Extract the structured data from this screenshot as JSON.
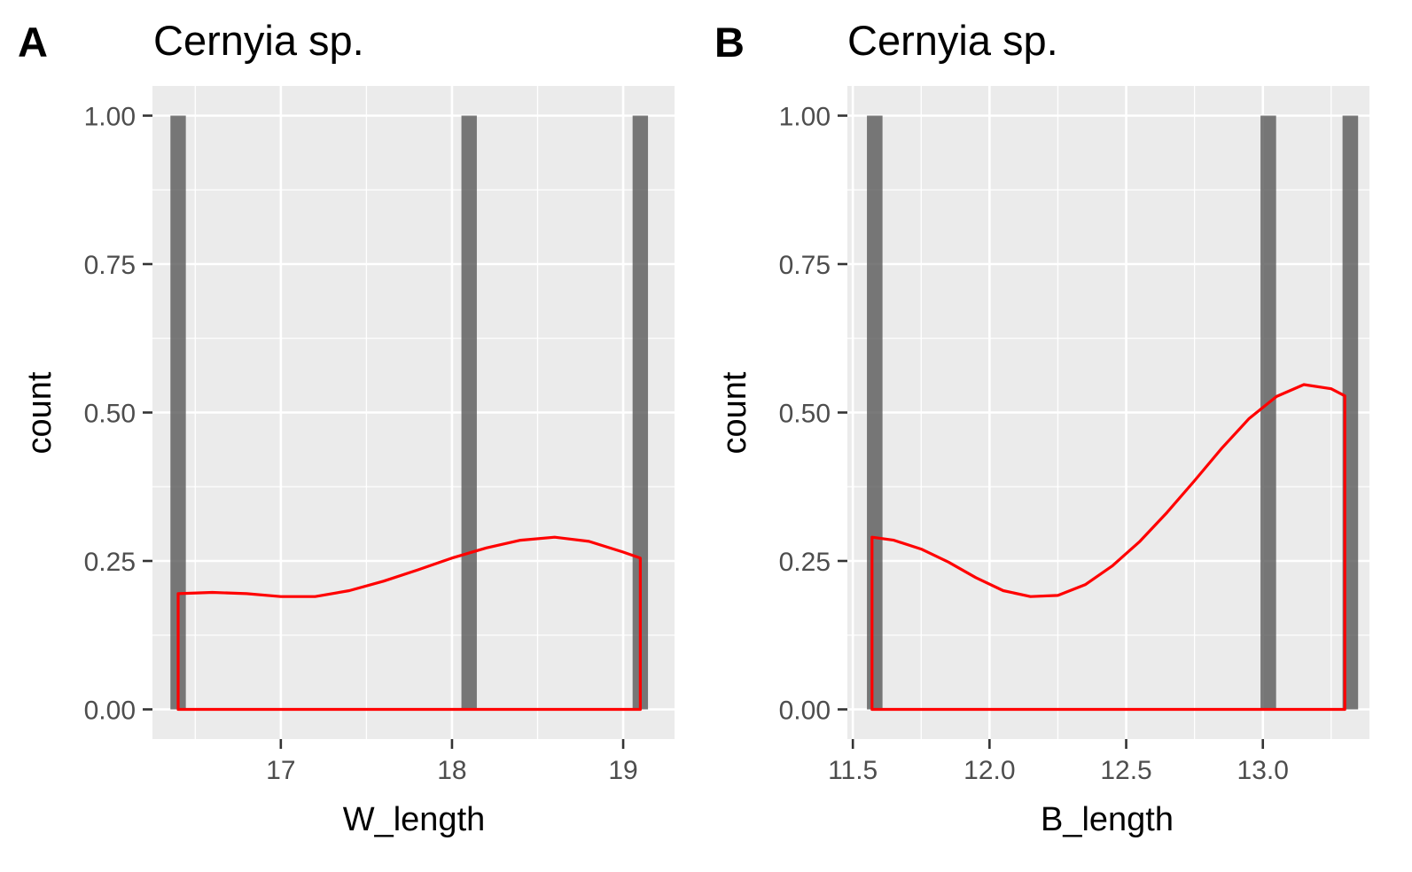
{
  "chart_data": [
    {
      "type": "bar",
      "tag": "A",
      "title": "Cernyia sp.",
      "xlabel": "W_length",
      "ylabel": "count",
      "xlim": [
        16.25,
        19.3
      ],
      "ylim": [
        -0.05,
        1.05
      ],
      "x_ticks": [
        17,
        18,
        19
      ],
      "x_tick_labels": [
        "17",
        "18",
        "19"
      ],
      "x_minor": [
        16.5,
        17.5,
        18.5
      ],
      "y_ticks": [
        0,
        0.25,
        0.5,
        0.75,
        1
      ],
      "y_tick_labels": [
        "0.00",
        "0.25",
        "0.50",
        "0.75",
        "1.00"
      ],
      "grid": true,
      "bar_width": 0.09,
      "bars": [
        {
          "x": 16.4,
          "count": 1
        },
        {
          "x": 18.1,
          "count": 1
        },
        {
          "x": 19.1,
          "count": 1
        }
      ],
      "density_color": "#ff0000",
      "density": {
        "x": [
          16.4,
          16.6,
          16.8,
          17.0,
          17.2,
          17.4,
          17.6,
          17.8,
          18.0,
          18.2,
          18.4,
          18.6,
          18.8,
          19.0,
          19.1
        ],
        "y": [
          0.195,
          0.197,
          0.195,
          0.19,
          0.19,
          0.2,
          0.216,
          0.235,
          0.255,
          0.272,
          0.285,
          0.29,
          0.283,
          0.265,
          0.255
        ]
      }
    },
    {
      "type": "bar",
      "tag": "B",
      "title": "Cernyia sp.",
      "xlabel": "B_length",
      "ylabel": "count",
      "xlim": [
        11.48,
        13.39
      ],
      "ylim": [
        -0.05,
        1.05
      ],
      "x_ticks": [
        11.5,
        12.0,
        12.5,
        13.0
      ],
      "x_tick_labels": [
        "11.5",
        "12.0",
        "12.5",
        "13.0"
      ],
      "x_minor": [
        11.75,
        12.25,
        12.75,
        13.25
      ],
      "y_ticks": [
        0,
        0.25,
        0.5,
        0.75,
        1
      ],
      "y_tick_labels": [
        "0.00",
        "0.25",
        "0.50",
        "0.75",
        "1.00"
      ],
      "grid": true,
      "bar_width": 0.057,
      "bars": [
        {
          "x": 11.58,
          "count": 1
        },
        {
          "x": 13.02,
          "count": 1
        },
        {
          "x": 13.32,
          "count": 1
        }
      ],
      "density_color": "#ff0000",
      "density": {
        "x": [
          11.57,
          11.65,
          11.75,
          11.85,
          11.95,
          12.05,
          12.15,
          12.25,
          12.35,
          12.45,
          12.55,
          12.65,
          12.75,
          12.85,
          12.95,
          13.05,
          13.15,
          13.25,
          13.3
        ],
        "y": [
          0.29,
          0.285,
          0.27,
          0.248,
          0.222,
          0.2,
          0.19,
          0.192,
          0.21,
          0.242,
          0.283,
          0.332,
          0.385,
          0.44,
          0.49,
          0.527,
          0.547,
          0.54,
          0.528
        ]
      }
    }
  ]
}
